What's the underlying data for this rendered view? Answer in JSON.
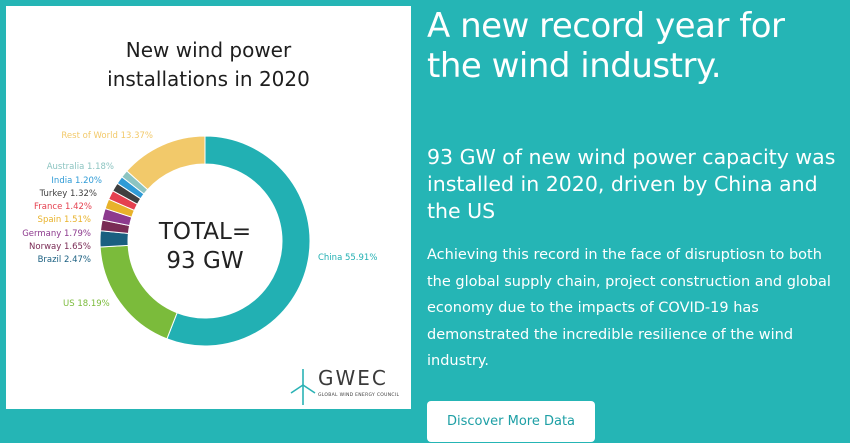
{
  "chart_data": {
    "type": "pie",
    "title": "New wind power installations in 2020",
    "total_label": "TOTAL=",
    "total_value": "93 GW",
    "slices": [
      {
        "name": "China",
        "value": 55.91,
        "label": "China 55.91%",
        "color": "#22b0b3"
      },
      {
        "name": "US",
        "value": 18.19,
        "label": "US 18.19%",
        "color": "#7bbb3b"
      },
      {
        "name": "Brazil",
        "value": 2.47,
        "label": "Brazil 2.47%",
        "color": "#1a5f80"
      },
      {
        "name": "Norway",
        "value": 1.65,
        "label": "Norway 1.65%",
        "color": "#7a2b55"
      },
      {
        "name": "Germany",
        "value": 1.79,
        "label": "Germany 1.79%",
        "color": "#8d3a8e"
      },
      {
        "name": "Spain",
        "value": 1.51,
        "label": "Spain 1.51%",
        "color": "#e8b22a"
      },
      {
        "name": "France",
        "value": 1.42,
        "label": "France 1.42%",
        "color": "#e5404f"
      },
      {
        "name": "Turkey",
        "value": 1.32,
        "label": "Turkey 1.32%",
        "color": "#3f3f3f"
      },
      {
        "name": "India",
        "value": 1.2,
        "label": "India 1.20%",
        "color": "#2f9bd6"
      },
      {
        "name": "Australia",
        "value": 1.18,
        "label": "Australia 1.18%",
        "color": "#8cc4c1"
      },
      {
        "name": "Rest of World",
        "value": 13.37,
        "label": "Rest of World 13.37%",
        "color": "#f2c96a"
      }
    ],
    "colors": {
      "total_text": "#222222"
    }
  },
  "logo": {
    "name": "GWEC",
    "subtitle": "GLOBAL WIND ENERGY COUNCIL",
    "color": "#2ab2b5"
  },
  "panel": {
    "headline": "A new record year for the wind industry.",
    "subhead": "93 GW of new wind power capacity was installed in 2020, driven by China and the US",
    "body": "Achieving this record in the face of disruptiosn to both the global supply chain, project construction and global economy due to the impacts of COVID-19 has demonstrated the incredible resilience of the wind industry.",
    "button_label": "Discover More Data"
  },
  "colors": {
    "background": "#25b5b5",
    "button_text": "#1d9fa5"
  }
}
